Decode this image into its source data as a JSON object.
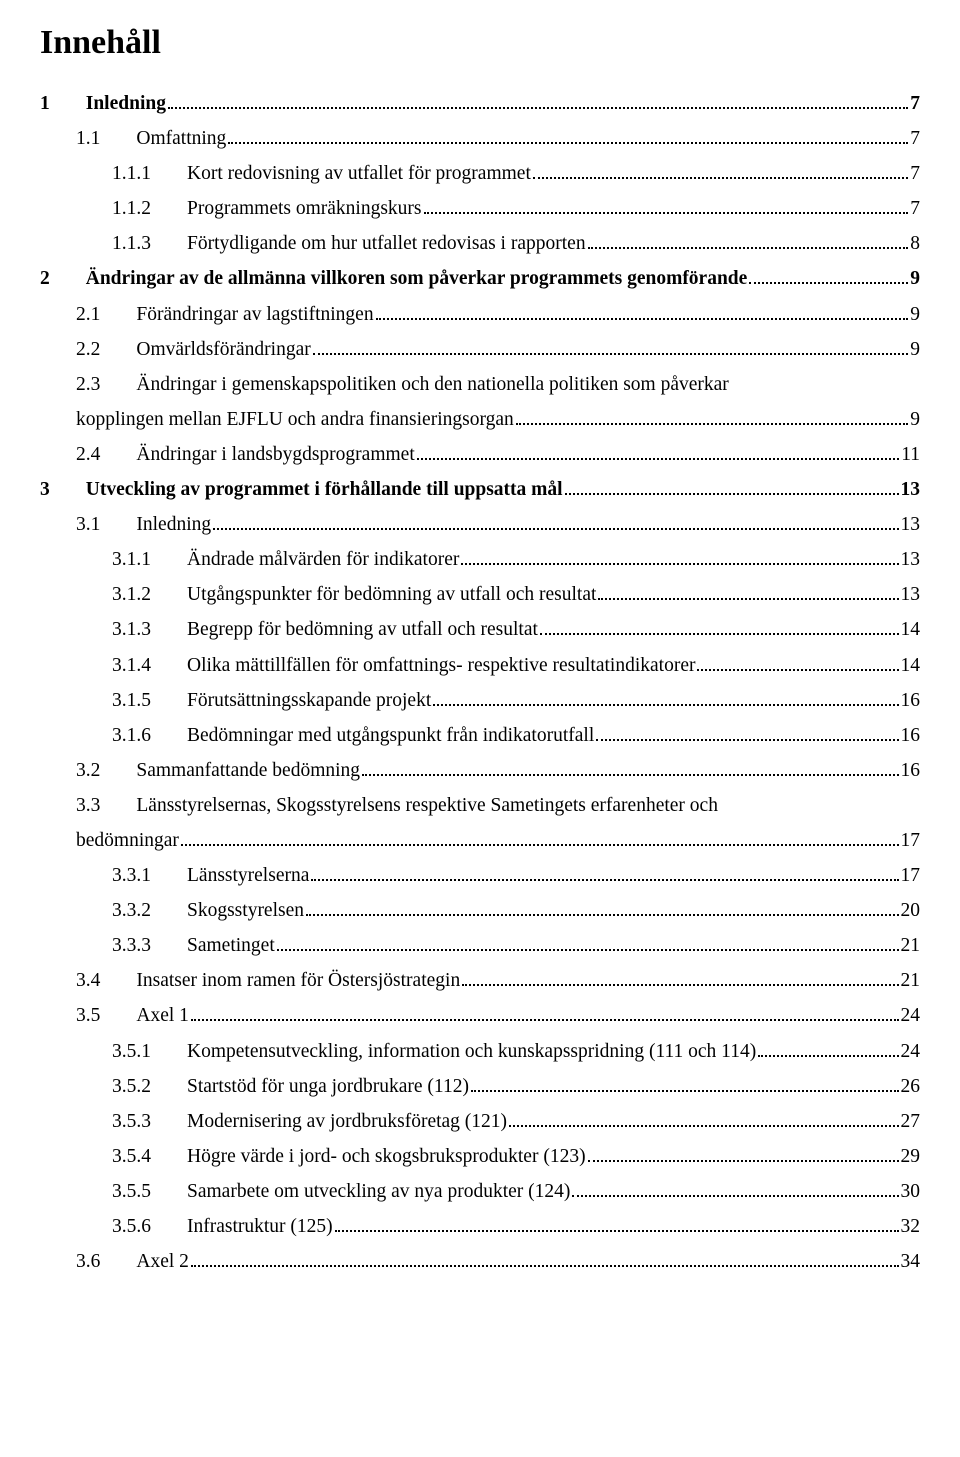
{
  "title": "Innehåll",
  "entries": [
    {
      "level": 1,
      "bold": true,
      "num": "1",
      "label": "Inledning",
      "page": "7"
    },
    {
      "level": 2,
      "bold": false,
      "num": "1.1",
      "label": "Omfattning",
      "page": "7"
    },
    {
      "level": 3,
      "bold": false,
      "num": "1.1.1",
      "label": "Kort redovisning av utfallet för programmet",
      "page": "7"
    },
    {
      "level": 3,
      "bold": false,
      "num": "1.1.2",
      "label": "Programmets omräkningskurs",
      "page": "7"
    },
    {
      "level": 3,
      "bold": false,
      "num": "1.1.3",
      "label": "Förtydligande om hur utfallet redovisas i rapporten",
      "page": "8"
    },
    {
      "level": 1,
      "bold": true,
      "num": "2",
      "label": "Ändringar av de allmänna villkoren som påverkar programmets genomförande",
      "page": "9"
    },
    {
      "level": 2,
      "bold": false,
      "num": "2.1",
      "label": "Förändringar av lagstiftningen",
      "page": "9"
    },
    {
      "level": 2,
      "bold": false,
      "num": "2.2",
      "label": "Omvärldsförändringar",
      "page": "9"
    },
    {
      "level": 2,
      "bold": false,
      "num": "2.3",
      "label1": "Ändringar i gemenskapspolitiken och den nationella politiken som påverkar",
      "label2": "kopplingen mellan EJFLU och andra finansieringsorgan",
      "page": "9",
      "wrap": true,
      "wrapIndent": "36px"
    },
    {
      "level": 2,
      "bold": false,
      "num": "2.4",
      "label": "Ändringar i landsbygdsprogrammet",
      "page": "11"
    },
    {
      "level": 1,
      "bold": true,
      "num": "3",
      "label": "Utveckling av programmet i förhållande till uppsatta mål",
      "page": "13"
    },
    {
      "level": 2,
      "bold": false,
      "num": "3.1",
      "label": "Inledning",
      "page": "13"
    },
    {
      "level": 3,
      "bold": false,
      "num": "3.1.1",
      "label": "Ändrade målvärden för indikatorer",
      "page": "13"
    },
    {
      "level": 3,
      "bold": false,
      "num": "3.1.2",
      "label": "Utgångspunkter för bedömning av utfall och resultat",
      "page": "13"
    },
    {
      "level": 3,
      "bold": false,
      "num": "3.1.3",
      "label": "Begrepp för bedömning av utfall och resultat",
      "page": "14"
    },
    {
      "level": 3,
      "bold": false,
      "num": "3.1.4",
      "label": "Olika mättillfällen för omfattnings- respektive resultatindikatorer",
      "page": "14"
    },
    {
      "level": 3,
      "bold": false,
      "num": "3.1.5",
      "label": "Förutsättningsskapande projekt",
      "page": "16"
    },
    {
      "level": 3,
      "bold": false,
      "num": "3.1.6",
      "label": "Bedömningar med utgångspunkt från indikatorutfall",
      "page": "16"
    },
    {
      "level": 2,
      "bold": false,
      "num": "3.2",
      "label": "Sammanfattande bedömning",
      "page": "16"
    },
    {
      "level": 2,
      "bold": false,
      "num": "3.3",
      "label1": "Länsstyrelsernas, Skogsstyrelsens respektive Sametingets erfarenheter och",
      "label2": "bedömningar",
      "page": "17",
      "wrap": true,
      "wrapIndent": "36px"
    },
    {
      "level": 3,
      "bold": false,
      "num": "3.3.1",
      "label": "Länsstyrelserna",
      "page": "17"
    },
    {
      "level": 3,
      "bold": false,
      "num": "3.3.2",
      "label": "Skogsstyrelsen",
      "page": "20"
    },
    {
      "level": 3,
      "bold": false,
      "num": "3.3.3",
      "label": "Sametinget",
      "page": "21"
    },
    {
      "level": 2,
      "bold": false,
      "num": "3.4",
      "label": "Insatser inom ramen för Östersjöstrategin",
      "page": "21"
    },
    {
      "level": 2,
      "bold": false,
      "num": "3.5",
      "label": "Axel 1",
      "page": "24"
    },
    {
      "level": 3,
      "bold": false,
      "num": "3.5.1",
      "label": "Kompetensutveckling, information och kunskapsspridning (111 och 114)",
      "page": "24"
    },
    {
      "level": 3,
      "bold": false,
      "num": "3.5.2",
      "label": "Startstöd för unga jordbrukare (112)",
      "page": "26"
    },
    {
      "level": 3,
      "bold": false,
      "num": "3.5.3",
      "label": "Modernisering av jordbruksföretag (121)",
      "page": "27"
    },
    {
      "level": 3,
      "bold": false,
      "num": "3.5.4",
      "label": "Högre värde i jord- och skogsbruksprodukter (123)",
      "page": "29"
    },
    {
      "level": 3,
      "bold": false,
      "num": "3.5.5",
      "label": "Samarbete om utveckling av nya produkter (124)",
      "page": "30"
    },
    {
      "level": 3,
      "bold": false,
      "num": "3.5.6",
      "label": "Infrastruktur (125)",
      "page": "32"
    },
    {
      "level": 2,
      "bold": false,
      "num": "3.6",
      "label": "Axel 2",
      "page": "34"
    }
  ]
}
